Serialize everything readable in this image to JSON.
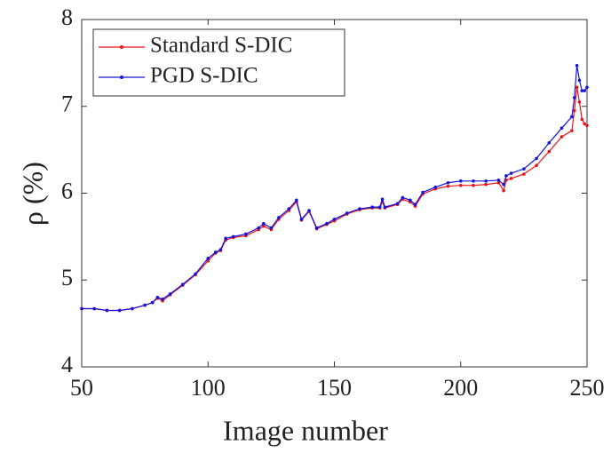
{
  "chart_data": {
    "type": "line",
    "x_label": "Image number",
    "y_label": "ρ (%)",
    "x": [
      50,
      55,
      60,
      65,
      70,
      75,
      78,
      80,
      82,
      85,
      90,
      95,
      100,
      103,
      105,
      107,
      110,
      115,
      120,
      122,
      125,
      128,
      132,
      135,
      137,
      140,
      143,
      147,
      150,
      155,
      160,
      165,
      168,
      169,
      170,
      175,
      177,
      180,
      182,
      185,
      190,
      195,
      200,
      205,
      210,
      215,
      217,
      218,
      220,
      225,
      230,
      235,
      240,
      244,
      245,
      246,
      247,
      248,
      249,
      250
    ],
    "series": [
      {
        "name": "Standard S-DIC",
        "color": "#e8141c",
        "values": [
          4.67,
          4.67,
          4.65,
          4.65,
          4.67,
          4.71,
          4.74,
          4.79,
          4.76,
          4.83,
          4.94,
          5.06,
          5.22,
          5.31,
          5.34,
          5.46,
          5.49,
          5.51,
          5.58,
          5.62,
          5.58,
          5.7,
          5.8,
          5.9,
          5.69,
          5.79,
          5.59,
          5.64,
          5.68,
          5.76,
          5.81,
          5.83,
          5.83,
          5.9,
          5.83,
          5.87,
          5.93,
          5.9,
          5.85,
          5.99,
          6.05,
          6.08,
          6.09,
          6.09,
          6.1,
          6.12,
          6.03,
          6.15,
          6.17,
          6.22,
          6.32,
          6.48,
          6.65,
          6.72,
          6.95,
          7.22,
          7.05,
          6.85,
          6.8,
          6.78
        ]
      },
      {
        "name": "PGD S-DIC",
        "color": "#1414dc",
        "values": [
          4.67,
          4.67,
          4.65,
          4.65,
          4.67,
          4.71,
          4.74,
          4.8,
          4.78,
          4.84,
          4.95,
          5.07,
          5.25,
          5.32,
          5.35,
          5.48,
          5.5,
          5.53,
          5.6,
          5.65,
          5.6,
          5.72,
          5.82,
          5.92,
          5.7,
          5.8,
          5.6,
          5.65,
          5.7,
          5.77,
          5.82,
          5.84,
          5.84,
          5.93,
          5.84,
          5.88,
          5.95,
          5.92,
          5.87,
          6.01,
          6.07,
          6.12,
          6.14,
          6.14,
          6.14,
          6.15,
          6.1,
          6.2,
          6.23,
          6.28,
          6.4,
          6.58,
          6.75,
          6.88,
          7.1,
          7.47,
          7.3,
          7.18,
          7.18,
          7.22
        ]
      }
    ],
    "xlim": [
      50,
      250
    ],
    "xticks": [
      50,
      100,
      150,
      200,
      250
    ],
    "ylim": [
      4,
      8
    ],
    "yticks": [
      4,
      5,
      6,
      7,
      8
    ],
    "legend": "upper left"
  }
}
